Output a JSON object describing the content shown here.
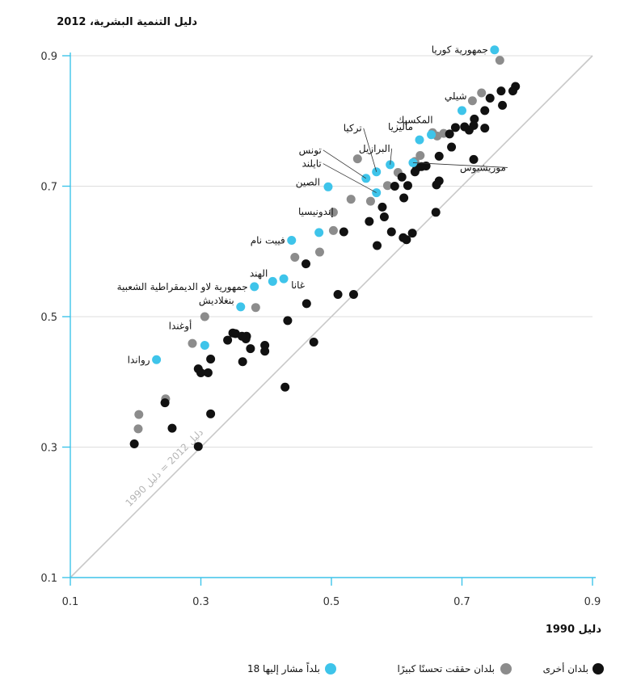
{
  "chart_data": {
    "type": "scatter",
    "title": "دليل التنمية البشرية، 2012",
    "xlabel": "دليل 1990",
    "ylabel": "دليل التنمية البشرية، 2012",
    "xlim": [
      0.1,
      0.9
    ],
    "ylim": [
      0.1,
      0.9
    ],
    "x_ticks": [
      "0.1",
      "0.3",
      "0.5",
      "0.7",
      "0.9"
    ],
    "y_ticks": [
      "0.1",
      "0.3",
      "0.5",
      "0.7",
      "0.9"
    ],
    "grid": "horizontal",
    "diagonal_label": "دليل 2012 = دليل 1990",
    "colors": {
      "other": "#111111",
      "improved": "#8c8c8c",
      "highlight": "#3ec4ea",
      "diagonal": "#c8c8c8",
      "grid": "#dddddd",
      "axis": "#3ec4ea"
    },
    "legend": [
      {
        "key": "other",
        "label": "بلدان أخرى"
      },
      {
        "key": "improved",
        "label": "بلدان حققت تحسنًا كبيرًا"
      },
      {
        "key": "highlight",
        "label": "18 بلداً مشار إليها"
      }
    ],
    "series": [
      {
        "key": "highlight",
        "points": [
          [
            0.75,
            0.909,
            "جمهورية كوريا"
          ],
          [
            0.7,
            0.816,
            "شيلي"
          ],
          [
            0.653,
            0.779,
            "المكسيك"
          ],
          [
            0.635,
            0.771,
            "ماليزيا"
          ],
          [
            0.59,
            0.733,
            "البرازيل"
          ],
          [
            0.625,
            0.736,
            "موريشيوس"
          ],
          [
            0.569,
            0.722,
            "تركيا"
          ],
          [
            0.553,
            0.712,
            "تونس"
          ],
          [
            0.569,
            0.69,
            "تايلند"
          ],
          [
            0.495,
            0.699,
            "الصين"
          ],
          [
            0.481,
            0.629,
            "إندونيسيا"
          ],
          [
            0.439,
            0.617,
            "فييت نام"
          ],
          [
            0.427,
            0.558,
            "غانا"
          ],
          [
            0.41,
            0.554,
            "الهند"
          ],
          [
            0.382,
            0.546,
            "جمهورية لاو الديمقراطية الشعبية"
          ],
          [
            0.361,
            0.515,
            "بنغلاديش"
          ],
          [
            0.306,
            0.456,
            "أوغندا"
          ],
          [
            0.232,
            0.434,
            "رواندا"
          ]
        ]
      },
      {
        "key": "improved",
        "points": [
          [
            0.758,
            0.893
          ],
          [
            0.73,
            0.843
          ],
          [
            0.716,
            0.831
          ],
          [
            0.672,
            0.781
          ],
          [
            0.662,
            0.777
          ],
          [
            0.655,
            0.782
          ],
          [
            0.636,
            0.747
          ],
          [
            0.628,
            0.738
          ],
          [
            0.602,
            0.721
          ],
          [
            0.586,
            0.701
          ],
          [
            0.56,
            0.677
          ],
          [
            0.54,
            0.742
          ],
          [
            0.53,
            0.68
          ],
          [
            0.503,
            0.66
          ],
          [
            0.503,
            0.632
          ],
          [
            0.482,
            0.599
          ],
          [
            0.444,
            0.591
          ],
          [
            0.384,
            0.514
          ],
          [
            0.306,
            0.5
          ],
          [
            0.287,
            0.459
          ],
          [
            0.246,
            0.374
          ],
          [
            0.205,
            0.35
          ],
          [
            0.204,
            0.328
          ]
        ]
      },
      {
        "key": "other",
        "points": [
          [
            0.782,
            0.853
          ],
          [
            0.778,
            0.846
          ],
          [
            0.76,
            0.846
          ],
          [
            0.743,
            0.835
          ],
          [
            0.762,
            0.824
          ],
          [
            0.735,
            0.816
          ],
          [
            0.719,
            0.803
          ],
          [
            0.718,
            0.793
          ],
          [
            0.711,
            0.786
          ],
          [
            0.704,
            0.791
          ],
          [
            0.69,
            0.79
          ],
          [
            0.735,
            0.789
          ],
          [
            0.681,
            0.78
          ],
          [
            0.684,
            0.76
          ],
          [
            0.665,
            0.746
          ],
          [
            0.718,
            0.741
          ],
          [
            0.645,
            0.731
          ],
          [
            0.638,
            0.73
          ],
          [
            0.631,
            0.728
          ],
          [
            0.628,
            0.722
          ],
          [
            0.608,
            0.714
          ],
          [
            0.665,
            0.708
          ],
          [
            0.661,
            0.702
          ],
          [
            0.617,
            0.701
          ],
          [
            0.597,
            0.7
          ],
          [
            0.611,
            0.682
          ],
          [
            0.578,
            0.668
          ],
          [
            0.66,
            0.66
          ],
          [
            0.558,
            0.646
          ],
          [
            0.581,
            0.653
          ],
          [
            0.592,
            0.63
          ],
          [
            0.519,
            0.63
          ],
          [
            0.624,
            0.628
          ],
          [
            0.615,
            0.618
          ],
          [
            0.61,
            0.621
          ],
          [
            0.57,
            0.609
          ],
          [
            0.461,
            0.581
          ],
          [
            0.534,
            0.534
          ],
          [
            0.51,
            0.534
          ],
          [
            0.462,
            0.52
          ],
          [
            0.433,
            0.494
          ],
          [
            0.349,
            0.475
          ],
          [
            0.353,
            0.474
          ],
          [
            0.37,
            0.47
          ],
          [
            0.369,
            0.466
          ],
          [
            0.363,
            0.47
          ],
          [
            0.341,
            0.464
          ],
          [
            0.473,
            0.461
          ],
          [
            0.398,
            0.456
          ],
          [
            0.376,
            0.451
          ],
          [
            0.398,
            0.447
          ],
          [
            0.364,
            0.431
          ],
          [
            0.315,
            0.435
          ],
          [
            0.296,
            0.42
          ],
          [
            0.311,
            0.414
          ],
          [
            0.3,
            0.414
          ],
          [
            0.245,
            0.368
          ],
          [
            0.429,
            0.392
          ],
          [
            0.315,
            0.351
          ],
          [
            0.256,
            0.329
          ],
          [
            0.198,
            0.305
          ],
          [
            0.296,
            0.301
          ]
        ]
      }
    ]
  }
}
